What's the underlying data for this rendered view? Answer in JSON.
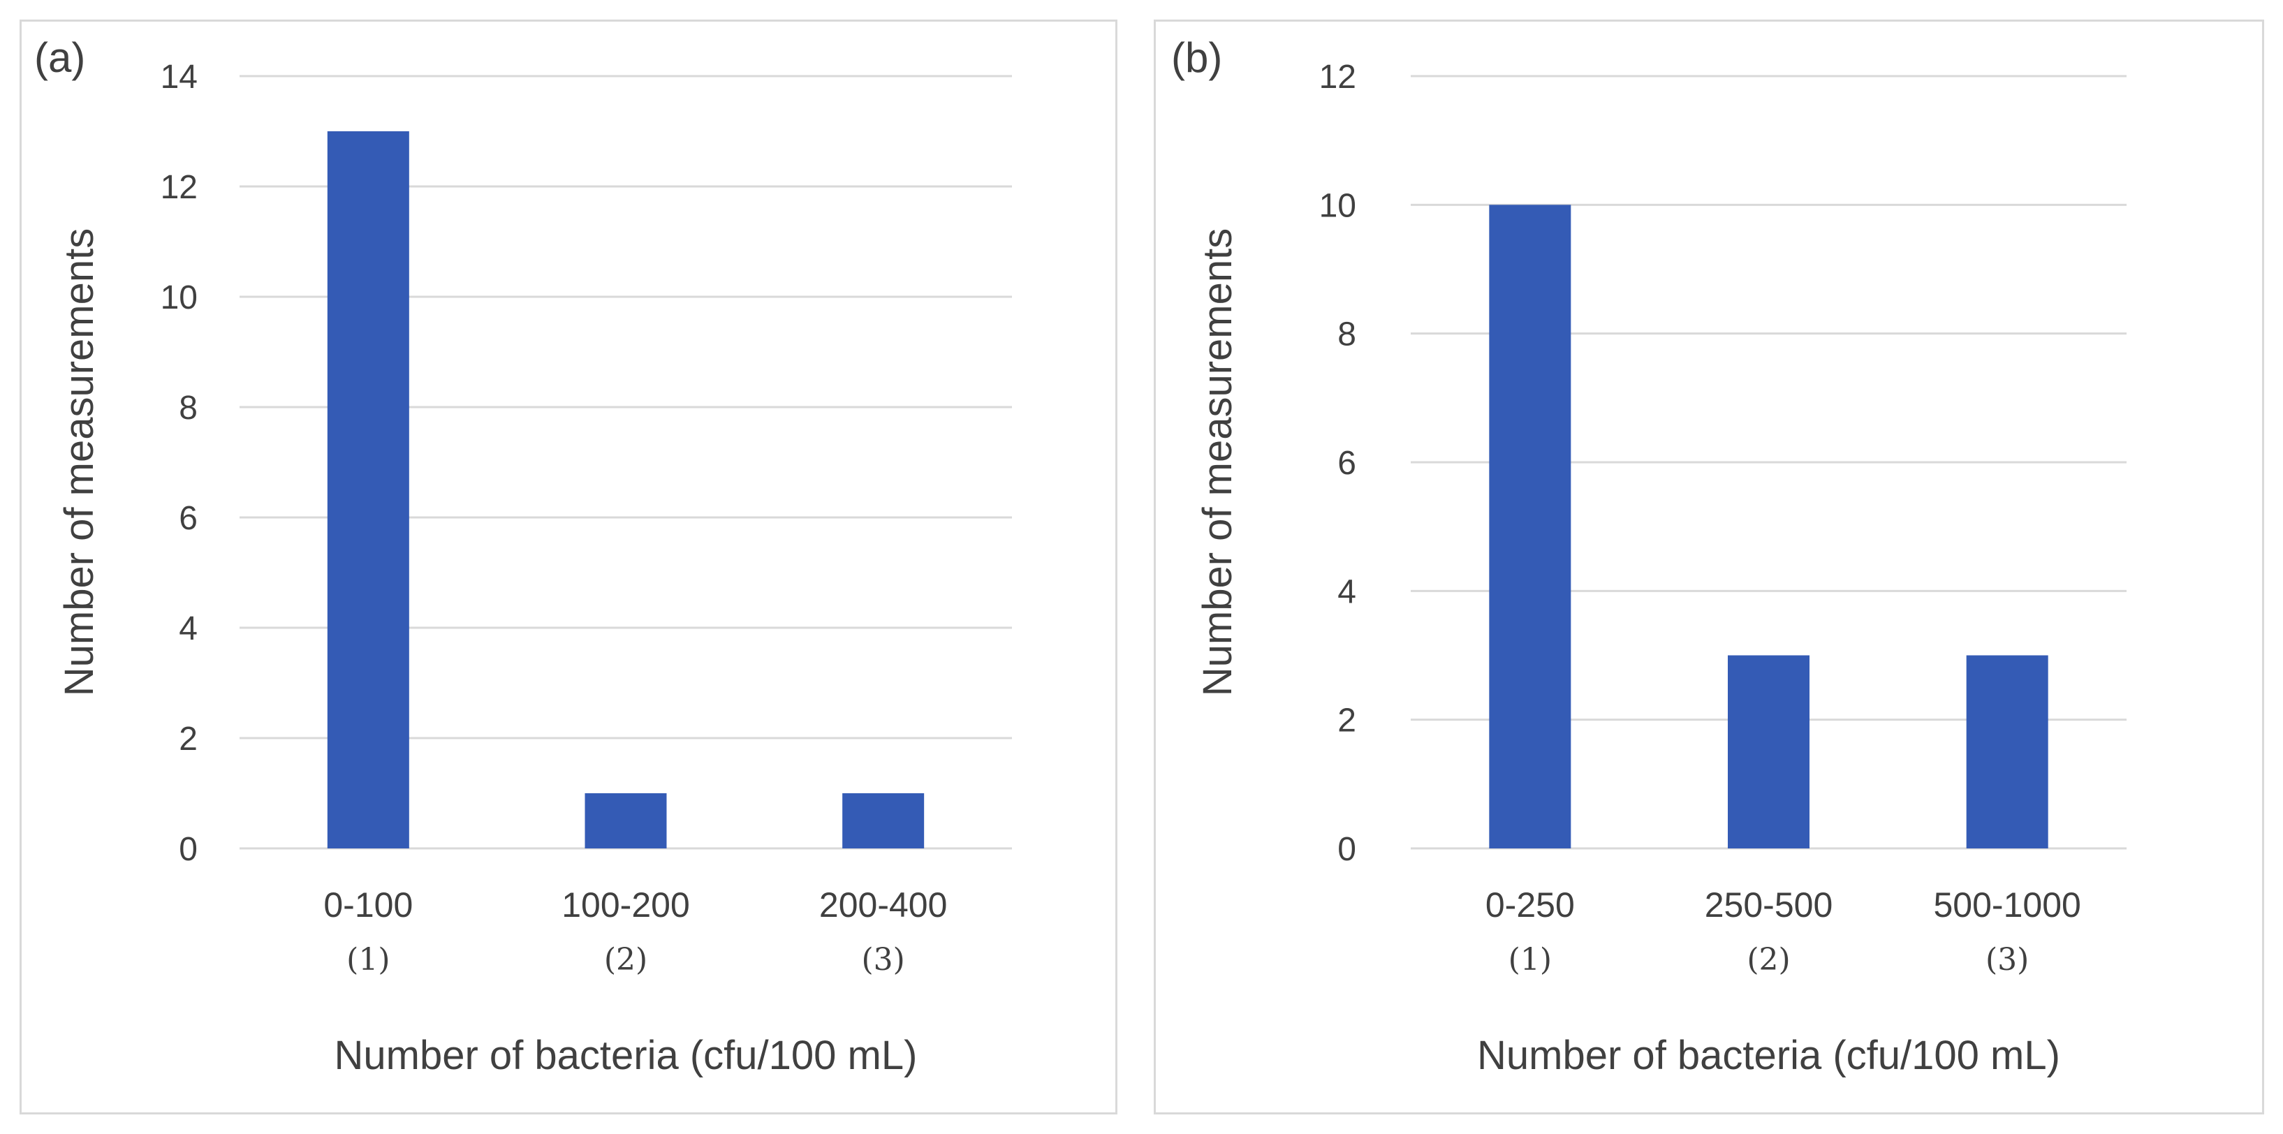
{
  "chart_data": [
    {
      "panel_label": "(a)",
      "type": "bar",
      "categories": [
        "0-100",
        "100-200",
        "200-400"
      ],
      "category_numbers": [
        "(1)",
        "(2)",
        "(3)"
      ],
      "values": [
        13,
        1,
        1
      ],
      "ylim": [
        0,
        14
      ],
      "yticks": [
        0,
        2,
        4,
        6,
        8,
        10,
        12,
        14
      ],
      "xlabel": "Number of bacteria (cfu/100 mL)",
      "ylabel": "Number of measurements",
      "grid": true,
      "bar_color": "#345BB5"
    },
    {
      "panel_label": "(b)",
      "type": "bar",
      "categories": [
        "0-250",
        "250-500",
        "500-1000"
      ],
      "category_numbers": [
        "(1)",
        "(2)",
        "(3)"
      ],
      "values": [
        10,
        3,
        3
      ],
      "ylim": [
        0,
        12
      ],
      "yticks": [
        0,
        2,
        4,
        6,
        8,
        10,
        12
      ],
      "xlabel": "Number of bacteria (cfu/100 mL)",
      "ylabel": "Number of measurements",
      "grid": true,
      "bar_color": "#345BB5"
    }
  ]
}
